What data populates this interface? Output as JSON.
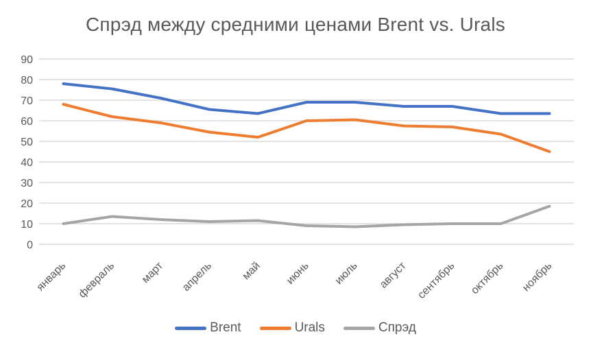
{
  "title": "Спрэд между средними ценами Brent vs. Urals",
  "colors": {
    "background": "#FFFFFF",
    "grid": "#D9D9D9",
    "text": "#595959",
    "brent": "#4472C4",
    "urals": "#ED7D31",
    "spread": "#A5A5A5"
  },
  "chart_data": {
    "type": "line",
    "title": "Спрэд между средними ценами Brent vs. Urals",
    "categories": [
      "январь",
      "февраль",
      "март",
      "апрель",
      "май",
      "июнь",
      "июль",
      "август",
      "сентябрь",
      "октябрь",
      "ноябрь"
    ],
    "series": [
      {
        "name": "Brent",
        "key": "brent",
        "color": "#4472C4",
        "values": [
          78,
          75.5,
          71,
          65.5,
          63.5,
          69,
          69,
          67,
          67,
          63.5,
          63.5
        ]
      },
      {
        "name": "Urals",
        "key": "urals",
        "color": "#ED7D31",
        "values": [
          68,
          62,
          59,
          54.5,
          52,
          60,
          60.5,
          57.5,
          57,
          53.5,
          45
        ]
      },
      {
        "name": "Спрэд",
        "key": "spread",
        "color": "#A5A5A5",
        "values": [
          10,
          13.5,
          12,
          11,
          11.5,
          9,
          8.5,
          9.5,
          10,
          10,
          18.5
        ]
      }
    ],
    "xlabel": "",
    "ylabel": "",
    "ylim": [
      0,
      90
    ],
    "ytick_step": 10,
    "grid": "horizontal",
    "legend_position": "bottom"
  }
}
